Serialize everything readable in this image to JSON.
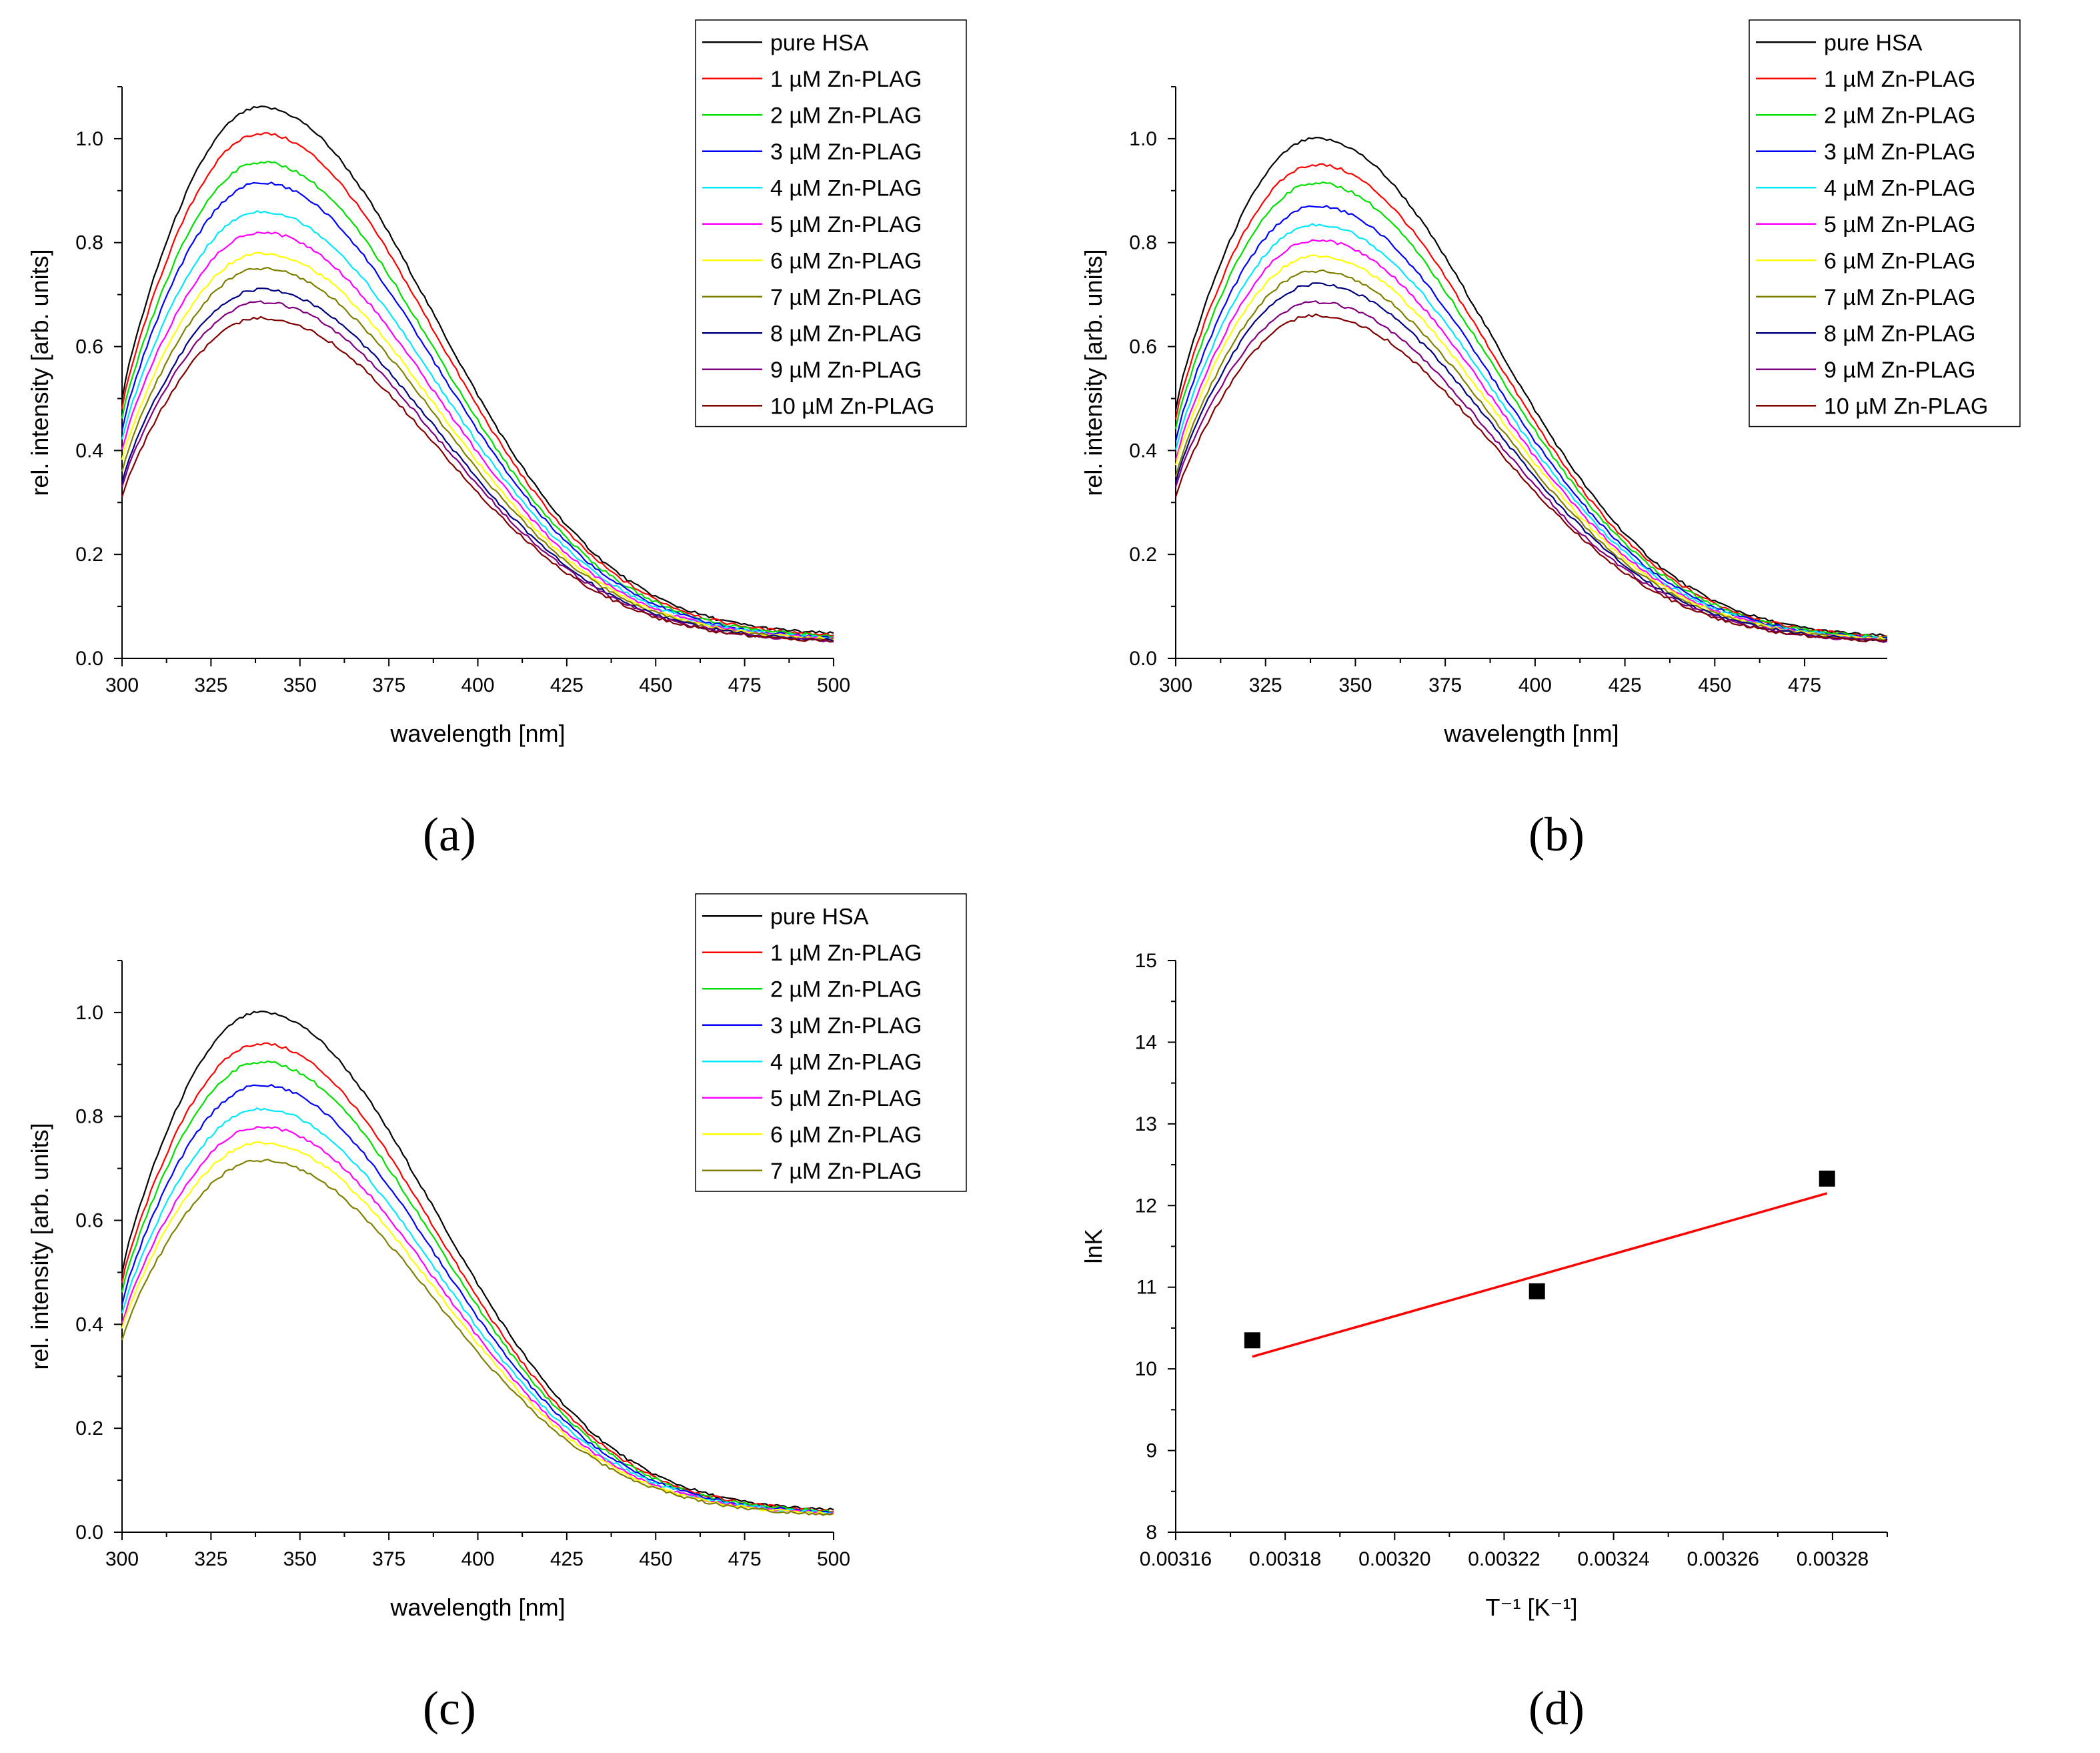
{
  "colors": {
    "pure HSA": "#000000",
    "1": "#ff0000",
    "2": "#00e000",
    "3": "#0000ff",
    "4": "#00e8ff",
    "5": "#ff00ff",
    "6": "#ffff00",
    "7": "#808000",
    "8": "#000080",
    "9": "#800080",
    "10": "#800000",
    "fit": "#ff0000",
    "marker": "#000000"
  },
  "panel_labels": {
    "a": "(a)",
    "b": "(b)",
    "c": "(c)",
    "d": "(d)"
  },
  "chart_data": [
    {
      "id": "a",
      "type": "line",
      "xlabel": "wavelength [nm]",
      "ylabel": "rel. intensity [arb. units]",
      "xlim": [
        300,
        500
      ],
      "ylim": [
        0.0,
        1.1
      ],
      "xticks": [
        300,
        325,
        350,
        375,
        400,
        425,
        450,
        475,
        500
      ],
      "yticks": [
        "0.0",
        "0.2",
        "0.4",
        "0.6",
        "0.8",
        "1.0"
      ],
      "legend_position": "top-right",
      "series": [
        {
          "name": "pure HSA",
          "peak": 1.06,
          "start": 0.5,
          "end": 0.04
        },
        {
          "name": "1 µM Zn-PLAG",
          "peak": 1.01,
          "start": 0.48,
          "end": 0.038
        },
        {
          "name": "2 µM Zn-PLAG",
          "peak": 0.955,
          "start": 0.46,
          "end": 0.036
        },
        {
          "name": "3 µM Zn-PLAG",
          "peak": 0.915,
          "start": 0.44,
          "end": 0.034
        },
        {
          "name": "4 µM Zn-PLAG",
          "peak": 0.86,
          "start": 0.42,
          "end": 0.033
        },
        {
          "name": "5 µM Zn-PLAG",
          "peak": 0.82,
          "start": 0.4,
          "end": 0.032
        },
        {
          "name": "6 µM Zn-PLAG",
          "peak": 0.78,
          "start": 0.38,
          "end": 0.031
        },
        {
          "name": "7 µM Zn-PLAG",
          "peak": 0.75,
          "start": 0.36,
          "end": 0.03
        },
        {
          "name": "8 µM Zn-PLAG",
          "peak": 0.71,
          "start": 0.34,
          "end": 0.029
        },
        {
          "name": "9 µM Zn-PLAG",
          "peak": 0.685,
          "start": 0.33,
          "end": 0.028
        },
        {
          "name": "10 µM Zn-PLAG",
          "peak": 0.655,
          "start": 0.31,
          "end": 0.027
        }
      ]
    },
    {
      "id": "b",
      "type": "line",
      "xlabel": "wavelength [nm]",
      "ylabel": "rel. intensity [arb. units]",
      "xlim": [
        300,
        498
      ],
      "ylim": [
        0.0,
        1.1
      ],
      "xticks": [
        300,
        325,
        350,
        375,
        400,
        425,
        450,
        475
      ],
      "yticks": [
        "0.0",
        "0.2",
        "0.4",
        "0.6",
        "0.8",
        "1.0"
      ],
      "legend_position": "top-right",
      "series": [
        {
          "name": "pure HSA",
          "peak": 1.0,
          "start": 0.48,
          "end": 0.035
        },
        {
          "name": "1 µM Zn-PLAG",
          "peak": 0.95,
          "start": 0.46,
          "end": 0.034
        },
        {
          "name": "2 µM Zn-PLAG",
          "peak": 0.915,
          "start": 0.44,
          "end": 0.033
        },
        {
          "name": "3 µM Zn-PLAG",
          "peak": 0.87,
          "start": 0.42,
          "end": 0.032
        },
        {
          "name": "4 µM Zn-PLAG",
          "peak": 0.835,
          "start": 0.4,
          "end": 0.031
        },
        {
          "name": "5 µM Zn-PLAG",
          "peak": 0.805,
          "start": 0.38,
          "end": 0.03
        },
        {
          "name": "6 µM Zn-PLAG",
          "peak": 0.775,
          "start": 0.37,
          "end": 0.03
        },
        {
          "name": "7 µM Zn-PLAG",
          "peak": 0.745,
          "start": 0.35,
          "end": 0.029
        },
        {
          "name": "8 µM Zn-PLAG",
          "peak": 0.72,
          "start": 0.34,
          "end": 0.028
        },
        {
          "name": "9 µM Zn-PLAG",
          "peak": 0.685,
          "start": 0.33,
          "end": 0.027
        },
        {
          "name": "10 µM Zn-PLAG",
          "peak": 0.66,
          "start": 0.31,
          "end": 0.026
        }
      ]
    },
    {
      "id": "c",
      "type": "line",
      "xlabel": "wavelength [nm]",
      "ylabel": "rel. intensity [arb. units]",
      "xlim": [
        300,
        500
      ],
      "ylim": [
        0.0,
        1.1
      ],
      "xticks": [
        300,
        325,
        350,
        375,
        400,
        425,
        450,
        475,
        500
      ],
      "yticks": [
        "0.0",
        "0.2",
        "0.4",
        "0.6",
        "0.8",
        "1.0"
      ],
      "legend_position": "top-right",
      "series": [
        {
          "name": "pure HSA",
          "peak": 1.0,
          "start": 0.5,
          "end": 0.035
        },
        {
          "name": "1 µM Zn-PLAG",
          "peak": 0.94,
          "start": 0.48,
          "end": 0.034
        },
        {
          "name": "2 µM Zn-PLAG",
          "peak": 0.905,
          "start": 0.46,
          "end": 0.033
        },
        {
          "name": "3 µM Zn-PLAG",
          "peak": 0.86,
          "start": 0.44,
          "end": 0.032
        },
        {
          "name": "4 µM Zn-PLAG",
          "peak": 0.815,
          "start": 0.42,
          "end": 0.031
        },
        {
          "name": "5 µM Zn-PLAG",
          "peak": 0.78,
          "start": 0.4,
          "end": 0.03
        },
        {
          "name": "6 µM Zn-PLAG",
          "peak": 0.75,
          "start": 0.39,
          "end": 0.029
        },
        {
          "name": "7 µM Zn-PLAG",
          "peak": 0.715,
          "start": 0.37,
          "end": 0.028
        }
      ]
    },
    {
      "id": "d",
      "type": "scatter",
      "xlabel": "T⁻¹ [K⁻¹]",
      "ylabel": "lnK",
      "xlim": [
        0.00316,
        0.00329
      ],
      "ylim": [
        8,
        15
      ],
      "xticks": [
        "0.00316",
        "0.00318",
        "0.00320",
        "0.00322",
        "0.00324",
        "0.00326",
        "0.00328"
      ],
      "yticks": [
        "8",
        "9",
        "10",
        "11",
        "12",
        "13",
        "14",
        "15"
      ],
      "points": [
        {
          "x": 0.003174,
          "y": 10.35
        },
        {
          "x": 0.003226,
          "y": 10.95
        },
        {
          "x": 0.003279,
          "y": 12.33
        }
      ],
      "fit_line": {
        "x": [
          0.003174,
          0.003279
        ],
        "y": [
          10.15,
          12.15
        ]
      }
    }
  ]
}
